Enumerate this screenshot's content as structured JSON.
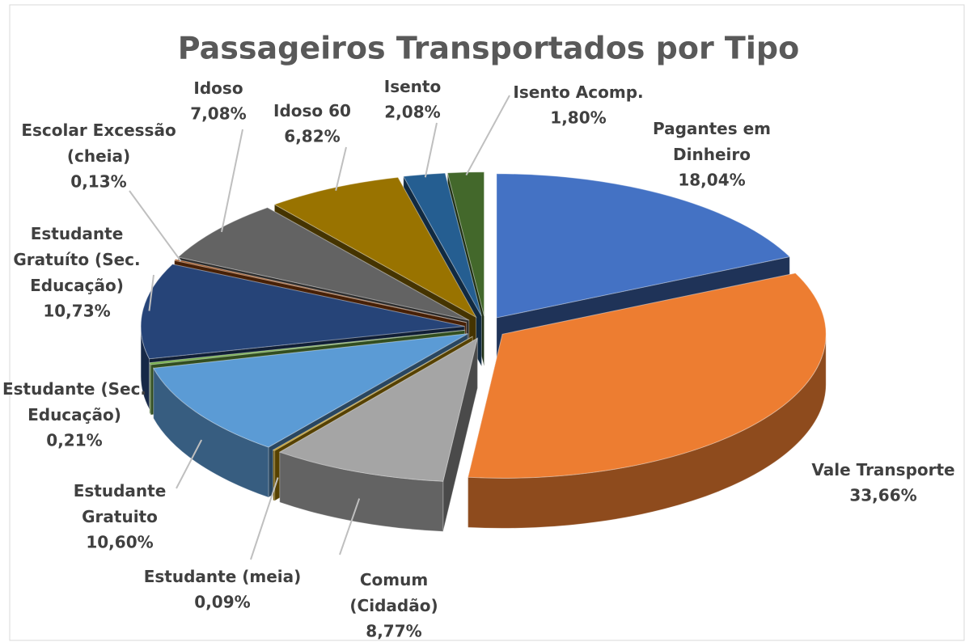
{
  "chart_data": {
    "type": "pie3d",
    "title": "Passageiros Transportados por Tipo",
    "categories": [
      "Pagantes em Dinheiro",
      "Vale Transporte",
      "Comum (Cidadão)",
      "Estudante (meia)",
      "Estudante Gratuito",
      "Estudante (Sec. Educação)",
      "Estudante Gratuíto (Sec. Educação)",
      "Escolar Excessão (cheia)",
      "Idoso",
      "Idoso 60",
      "Isento",
      "Isento Acomp."
    ],
    "values": [
      18.04,
      33.66,
      8.77,
      0.09,
      10.6,
      0.21,
      10.73,
      0.13,
      7.08,
      6.82,
      2.08,
      1.8
    ],
    "value_labels": [
      "18,04%",
      "33,66%",
      "8,77%",
      "0,09%",
      "10,60%",
      "0,21%",
      "10,73%",
      "0,13%",
      "7,08%",
      "6,82%",
      "2,08%",
      "1,80%"
    ],
    "colors": [
      "#4472c4",
      "#ed7d31",
      "#a5a5a5",
      "#bf9000",
      "#5b9bd5",
      "#70ad47",
      "#264478",
      "#9e480e",
      "#636363",
      "#997300",
      "#255e91",
      "#43682b"
    ]
  }
}
